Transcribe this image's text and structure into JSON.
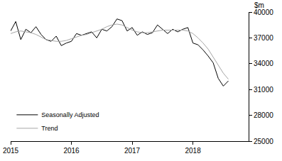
{
  "chart_data": {
    "type": "line",
    "y_label": "$m",
    "categories": [
      "2015",
      null,
      null,
      null,
      null,
      null,
      null,
      null,
      null,
      null,
      null,
      null,
      "2016",
      null,
      null,
      null,
      null,
      null,
      null,
      null,
      null,
      null,
      null,
      null,
      "2017",
      null,
      null,
      null,
      null,
      null,
      null,
      null,
      null,
      null,
      null,
      null,
      "2018",
      null,
      null,
      null,
      null,
      null,
      null,
      null,
      null,
      null,
      null,
      null
    ],
    "series": [
      {
        "name": "Seasonally Adjusted",
        "color": "#000000",
        "line_style": "solid",
        "values": [
          37800,
          38900,
          36800,
          38000,
          37600,
          38300,
          37400,
          36800,
          36600,
          37200,
          36100,
          36400,
          36600,
          37500,
          37300,
          37500,
          37700,
          37000,
          38000,
          37800,
          38300,
          39200,
          39000,
          37800,
          38200,
          37300,
          37700,
          37400,
          37600,
          38500,
          38000,
          37500,
          38000,
          37700,
          38000,
          38200,
          36400,
          36200,
          35600,
          34900,
          34100,
          32300,
          31400,
          32000,
          null,
          null,
          null,
          null
        ]
      },
      {
        "name": "Trend",
        "color": "#a6a6a6",
        "line_style": "solid",
        "values": [
          37500,
          37700,
          37800,
          37700,
          37600,
          37400,
          37100,
          36800,
          36700,
          36600,
          36600,
          36700,
          36900,
          37100,
          37300,
          37400,
          37600,
          37800,
          38000,
          38300,
          38500,
          38600,
          38500,
          38200,
          37900,
          37700,
          37600,
          37600,
          37700,
          37800,
          37900,
          37900,
          37900,
          37900,
          37900,
          37800,
          37500,
          37000,
          36400,
          35700,
          34800,
          33800,
          32900,
          32200,
          null,
          null,
          null,
          null
        ]
      }
    ],
    "ylim": [
      25000,
      40000
    ],
    "yticks": [
      25000,
      28000,
      31000,
      34000,
      37000,
      40000
    ],
    "grid": false,
    "legend": "lower left"
  }
}
